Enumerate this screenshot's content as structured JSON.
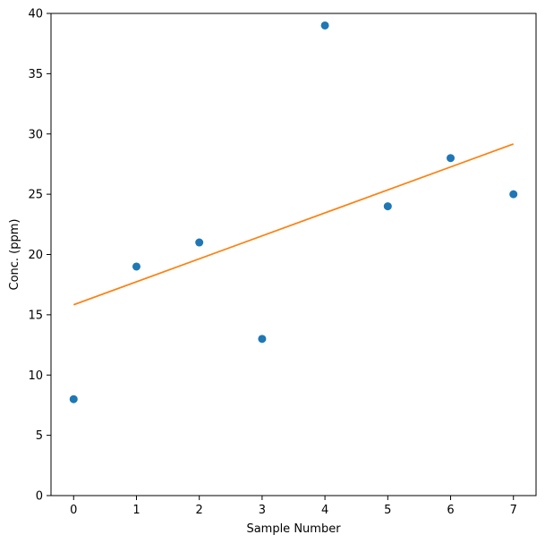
{
  "chart_data": {
    "type": "scatter",
    "title": "",
    "xlabel": "Sample Number",
    "ylabel": "Conc. (ppm)",
    "xlim": [
      -0.36,
      7.36
    ],
    "ylim": [
      0,
      40
    ],
    "xticks": [
      0,
      1,
      2,
      3,
      4,
      5,
      6,
      7
    ],
    "yticks": [
      0,
      5,
      10,
      15,
      20,
      25,
      30,
      35,
      40
    ],
    "grid": false,
    "legend": "none",
    "series": [
      {
        "kind": "scatter",
        "color": "#1f77b4",
        "x": [
          0,
          1,
          2,
          3,
          4,
          5,
          6,
          7
        ],
        "y": [
          8,
          19,
          21,
          13,
          39,
          24,
          28,
          25
        ]
      },
      {
        "kind": "line",
        "color": "#ff7f0e",
        "x": [
          0,
          7
        ],
        "y": [
          15.83,
          29.17
        ]
      }
    ]
  }
}
